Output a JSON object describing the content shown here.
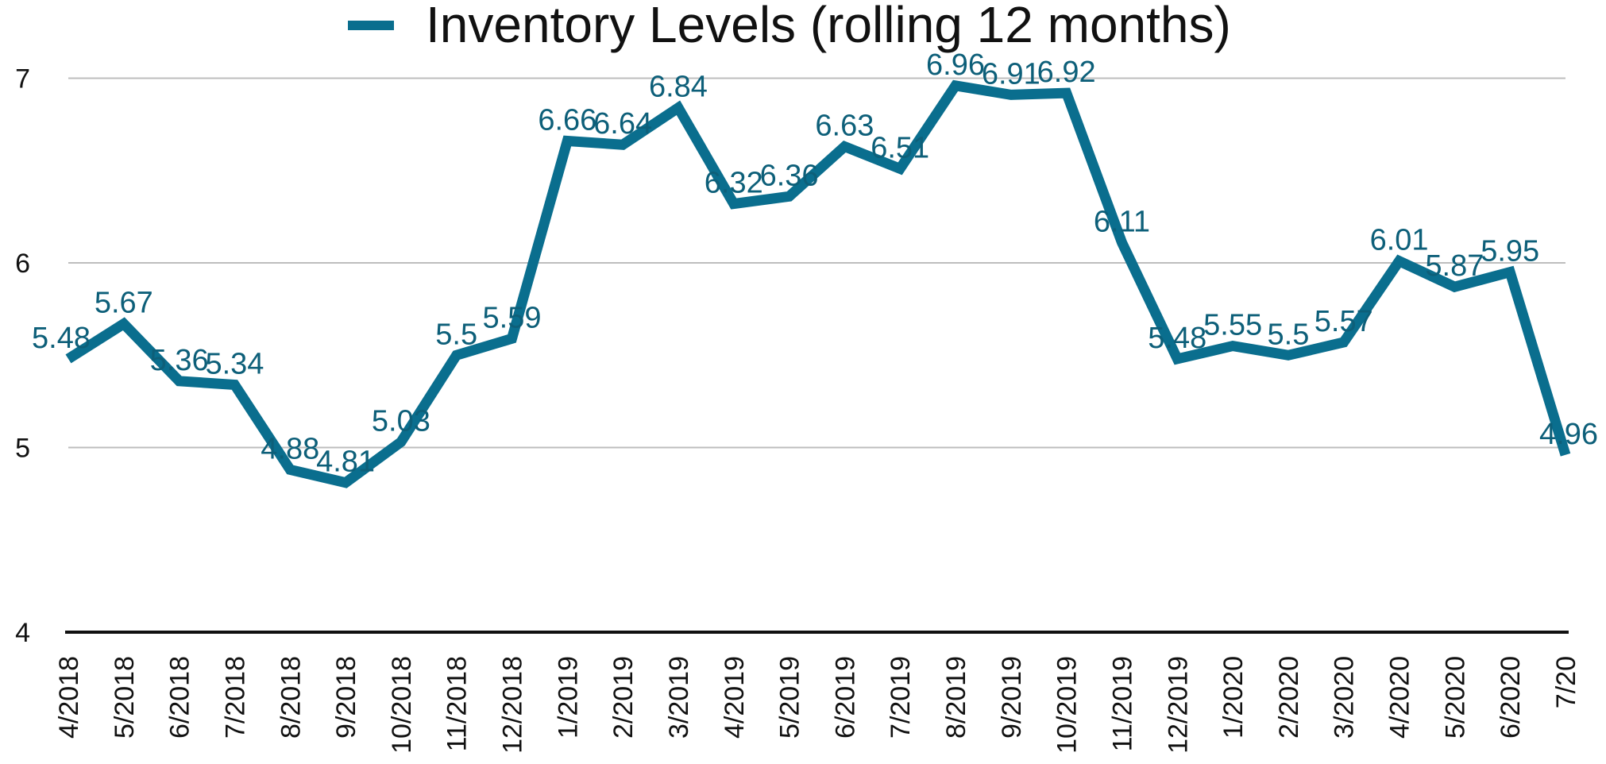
{
  "chart_data": {
    "type": "line",
    "series": [
      {
        "name": "Inventory Levels (rolling 12 months)",
        "values": [
          5.48,
          5.67,
          5.36,
          5.34,
          4.88,
          4.81,
          5.03,
          5.5,
          5.59,
          6.66,
          6.64,
          6.84,
          6.32,
          6.36,
          6.63,
          6.51,
          6.96,
          6.91,
          6.92,
          6.11,
          5.48,
          5.55,
          5.5,
          5.57,
          6.01,
          5.87,
          5.95,
          4.96
        ],
        "labels": [
          "5.48",
          "5.67",
          "5.36",
          "5.34",
          "4.88",
          "4.81",
          "5.03",
          "5.5",
          "5.59",
          "6.66",
          "6.64",
          "6.84",
          "6.32",
          "6.36",
          "6.63",
          "6.51",
          "6.96",
          "6.91",
          "6.92",
          "6.11",
          "5.48",
          "5.55",
          "5.5",
          "5.57",
          "6.01",
          "5.87",
          "5.95",
          "4.96"
        ]
      }
    ],
    "categories": [
      "4/2018",
      "5/2018",
      "6/2018",
      "7/2018",
      "8/2018",
      "9/2018",
      "10/2018",
      "11/2018",
      "12/2018",
      "1/2019",
      "2/2019",
      "3/2019",
      "4/2019",
      "5/2019",
      "6/2019",
      "7/2019",
      "8/2019",
      "9/2019",
      "10/2019",
      "11/2019",
      "12/2019",
      "1/2020",
      "2/2020",
      "3/2020",
      "4/2020",
      "5/2020",
      "6/2020",
      "7/20"
    ],
    "yticks": [
      "4",
      "5",
      "6",
      "7"
    ],
    "ylim": [
      4,
      7.1
    ],
    "grid": true,
    "legend_position": "top-center",
    "colors": {
      "line": "#0a6e8e",
      "label": "#0d5f79"
    }
  }
}
